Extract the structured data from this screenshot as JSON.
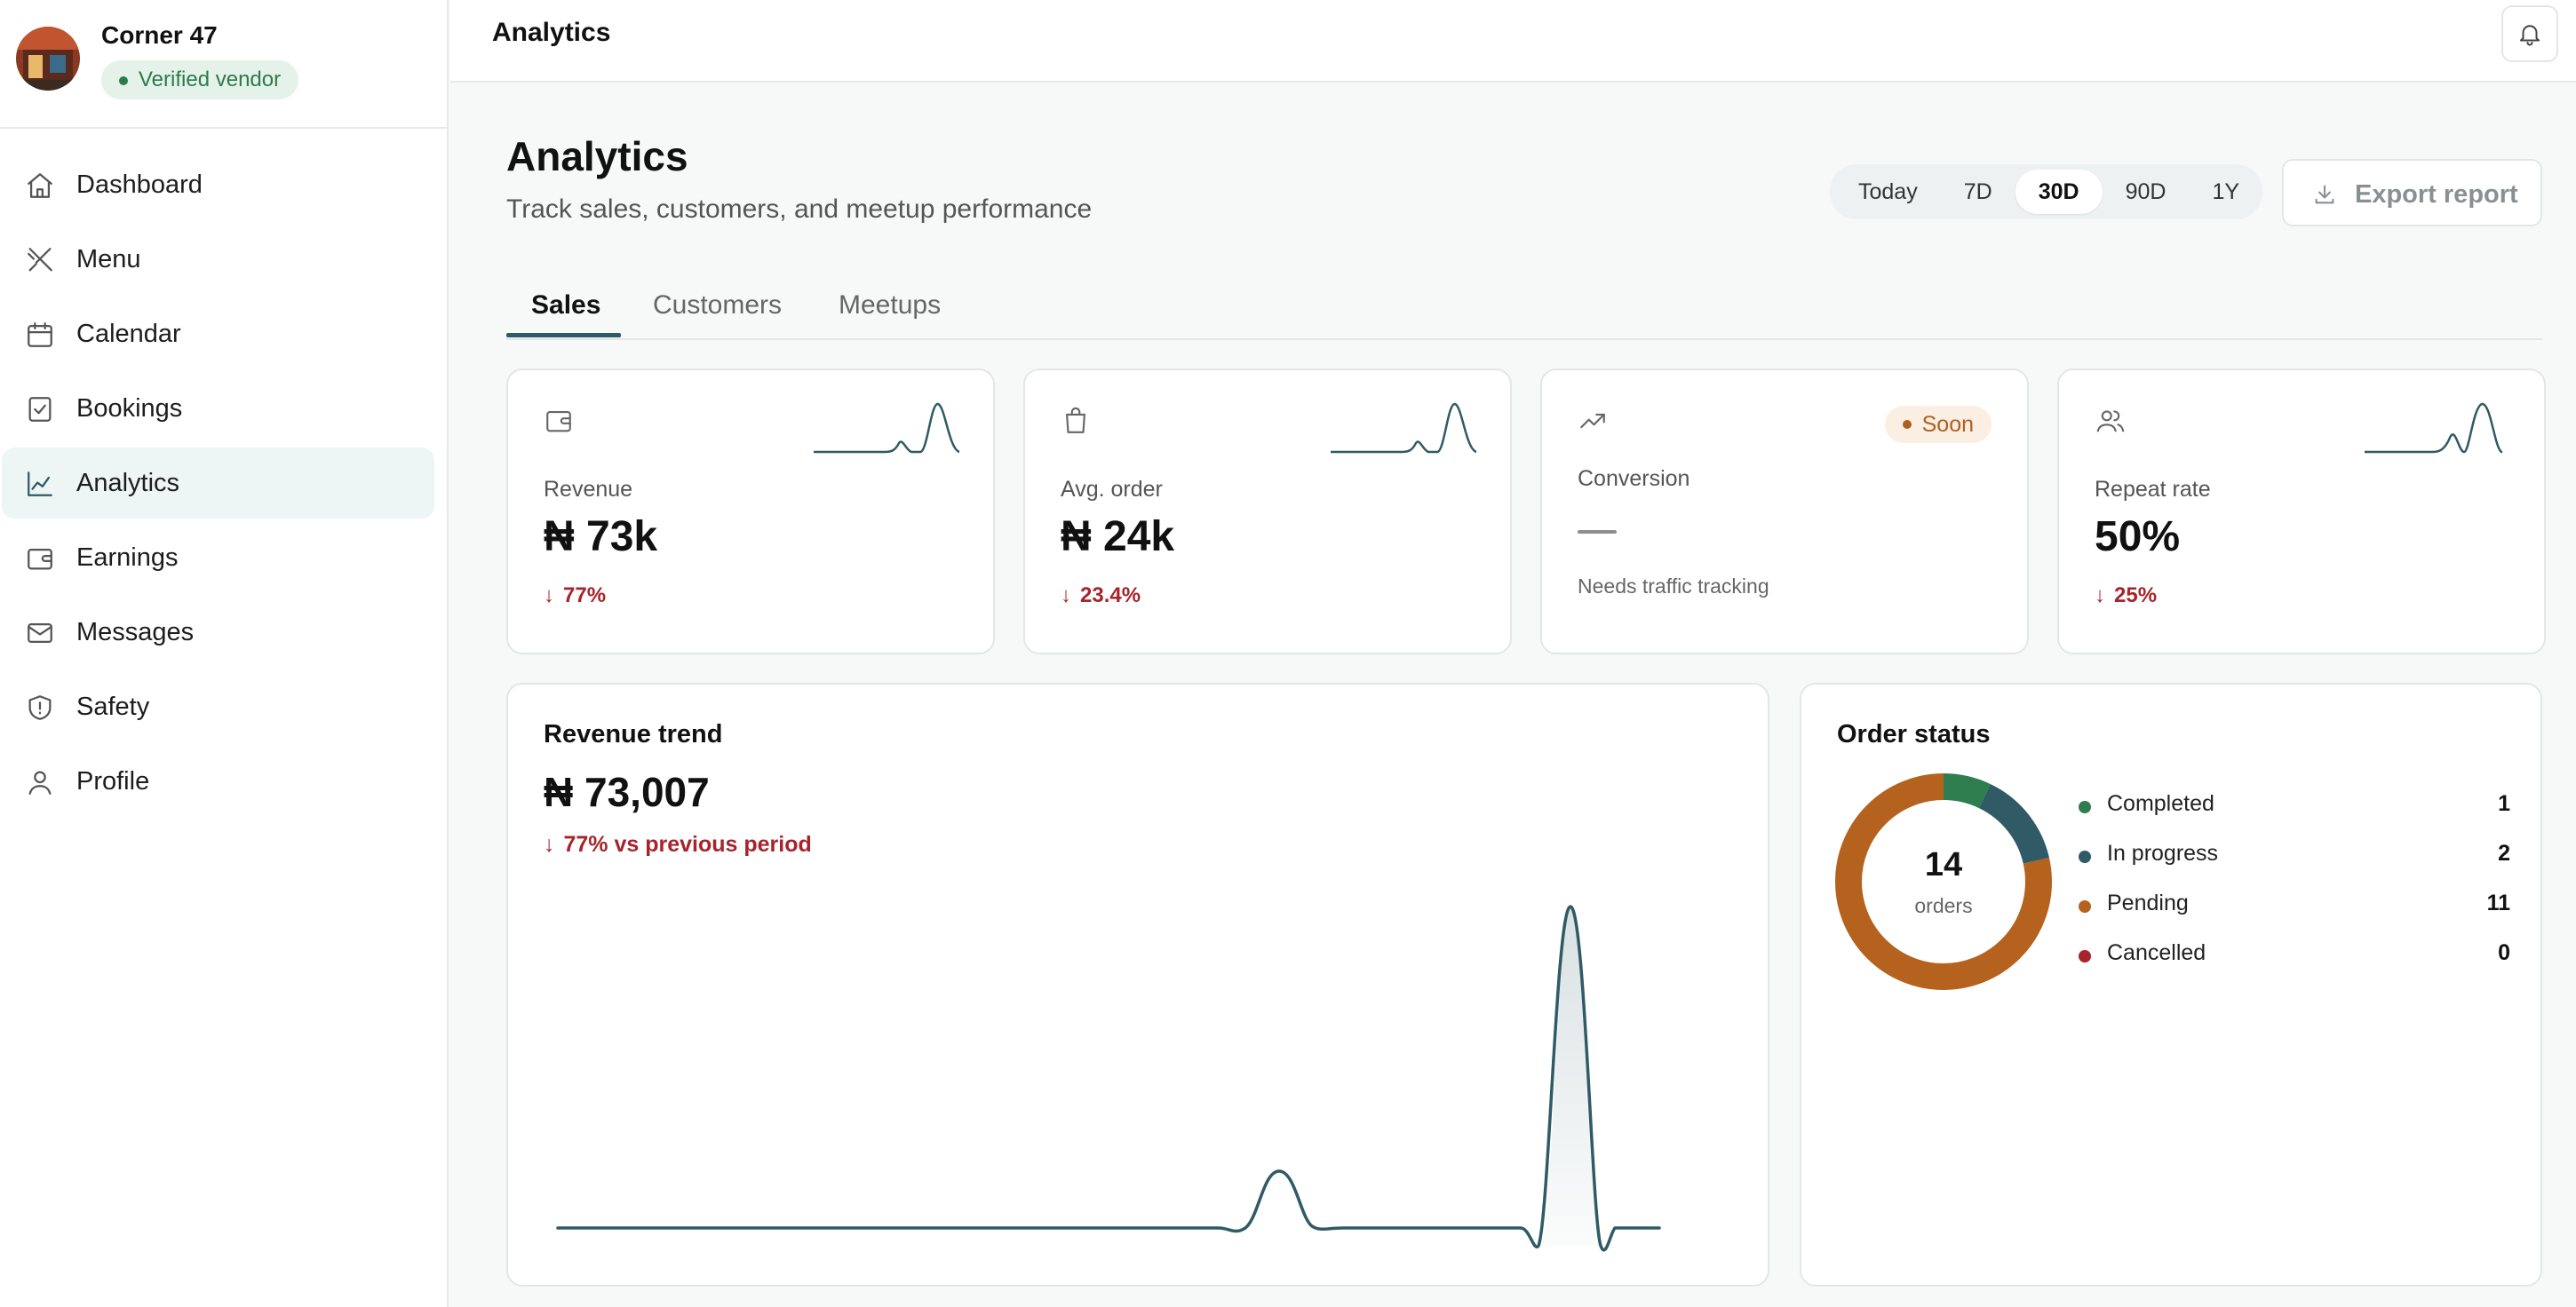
{
  "vendor": {
    "name": "Corner 47",
    "badge": "Verified vendor"
  },
  "sidebar": {
    "items": [
      {
        "label": "Dashboard",
        "icon": "home-icon"
      },
      {
        "label": "Menu",
        "icon": "utensils-icon"
      },
      {
        "label": "Calendar",
        "icon": "calendar-icon"
      },
      {
        "label": "Bookings",
        "icon": "clipboard-check-icon"
      },
      {
        "label": "Analytics",
        "icon": "chart-line-icon",
        "active": true
      },
      {
        "label": "Earnings",
        "icon": "wallet-icon"
      },
      {
        "label": "Messages",
        "icon": "mail-icon"
      },
      {
        "label": "Safety",
        "icon": "shield-icon"
      },
      {
        "label": "Profile",
        "icon": "user-icon"
      }
    ]
  },
  "topbar": {
    "title": "Analytics"
  },
  "page": {
    "title": "Analytics",
    "subtitle": "Track sales, customers, and meetup performance",
    "ranges": [
      "Today",
      "7D",
      "30D",
      "90D",
      "1Y"
    ],
    "selected_range": "30D",
    "export_label": "Export report"
  },
  "tabs": [
    "Sales",
    "Customers",
    "Meetups"
  ],
  "active_tab": "Sales",
  "kpis": [
    {
      "label": "Revenue",
      "value": "₦ 73k",
      "delta": "77%",
      "icon": "wallet-icon"
    },
    {
      "label": "Avg. order",
      "value": "₦ 24k",
      "delta": "23.4%",
      "icon": "shopping-bag-icon"
    },
    {
      "label": "Conversion",
      "badge": "Soon",
      "value": "—",
      "note": "Needs traffic tracking",
      "icon": "trending-up-icon"
    },
    {
      "label": "Repeat rate",
      "value": "50%",
      "delta": "25%",
      "icon": "users-icon"
    }
  ],
  "trend": {
    "title": "Revenue trend",
    "value": "₦ 73,007",
    "delta": "77% vs previous period"
  },
  "order_status": {
    "title": "Order status",
    "total": "14",
    "total_caption": "orders",
    "items": [
      {
        "label": "Completed",
        "count": 1,
        "color": "#2e7d4f"
      },
      {
        "label": "In progress",
        "count": 2,
        "color": "#2f5a66"
      },
      {
        "label": "Pending",
        "count": 11,
        "color": "#b5621f"
      },
      {
        "label": "Cancelled",
        "count": 0,
        "color": "#a8232b"
      }
    ]
  },
  "colors": {
    "accent": "#2f5a66",
    "negative": "#a8232b",
    "positive": "#2e7d4f"
  }
}
